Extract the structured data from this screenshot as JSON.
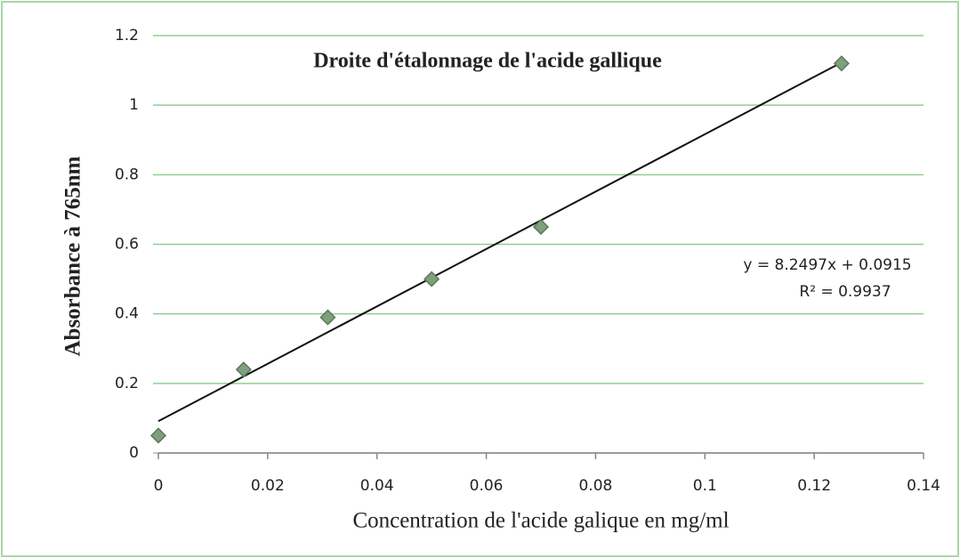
{
  "chart_data": {
    "type": "scatter",
    "title": "Droite d'étalonnage de l'acide gallique",
    "xlabel": "Concentration de l'acide galique en mg/ml",
    "ylabel": "Absorbance  à 765nm",
    "x": [
      0,
      0.0156,
      0.031,
      0.05,
      0.07,
      0.125
    ],
    "values": [
      0.05,
      0.24,
      0.39,
      0.5,
      0.65,
      1.12
    ],
    "color": "#7f9f7f",
    "xlim": [
      0,
      0.14
    ],
    "xticks": [
      0,
      0.02,
      0.04,
      0.06,
      0.08,
      0.1,
      0.12,
      0.14
    ],
    "ylim": [
      0,
      1.2
    ],
    "yticks": [
      0,
      0.2,
      0.4,
      0.6,
      0.8,
      1,
      1.2
    ],
    "grid": true,
    "trendline": {
      "slope": 8.2497,
      "intercept": 0.0915,
      "label": "y = 8.2497x + 0.0915",
      "r2": 0.9937,
      "r2_label": "R² = 0.9937"
    }
  }
}
